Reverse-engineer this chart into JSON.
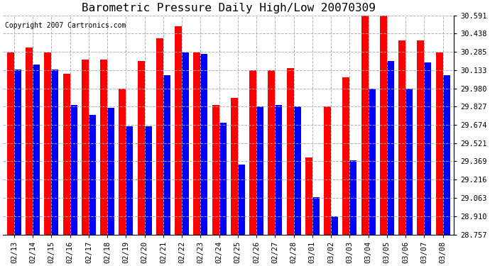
{
  "title": "Barometric Pressure Daily High/Low 20070309",
  "copyright": "Copyright 2007 Cartronics.com",
  "dates": [
    "02/13",
    "02/14",
    "02/15",
    "02/16",
    "02/17",
    "02/18",
    "02/19",
    "02/20",
    "02/21",
    "02/22",
    "02/23",
    "02/24",
    "02/25",
    "02/26",
    "02/27",
    "02/28",
    "03/01",
    "03/02",
    "03/03",
    "03/04",
    "03/05",
    "03/06",
    "03/07",
    "03/08"
  ],
  "highs": [
    30.28,
    30.32,
    30.28,
    30.1,
    30.22,
    30.22,
    29.98,
    30.21,
    30.4,
    30.5,
    30.28,
    29.84,
    29.9,
    30.13,
    30.13,
    30.15,
    29.4,
    29.83,
    30.07,
    30.59,
    30.59,
    30.38,
    30.38,
    30.28
  ],
  "lows": [
    30.14,
    30.18,
    30.14,
    29.84,
    29.76,
    29.82,
    29.66,
    29.66,
    30.09,
    30.28,
    30.27,
    29.69,
    29.34,
    29.83,
    29.84,
    29.83,
    29.07,
    28.91,
    29.38,
    29.98,
    30.21,
    29.98,
    30.2,
    30.09
  ],
  "ylim_min": 28.757,
  "ylim_max": 30.591,
  "yticks": [
    28.757,
    28.91,
    29.063,
    29.216,
    29.369,
    29.521,
    29.674,
    29.827,
    29.98,
    30.133,
    30.285,
    30.438,
    30.591
  ],
  "bar_width": 0.38,
  "high_color": "#ff0000",
  "low_color": "#0000ff",
  "bg_color": "#ffffff",
  "grid_color": "#aaaaaa",
  "title_fontsize": 11.5,
  "tick_fontsize": 7.5,
  "copyright_fontsize": 7
}
